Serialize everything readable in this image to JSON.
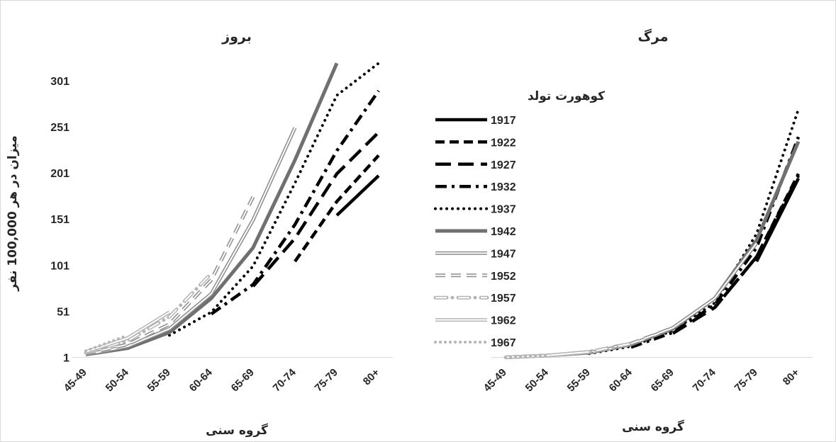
{
  "chart_data": [
    {
      "type": "line",
      "title": "بروز",
      "xlabel": "گروه سنی",
      "ylabel": "میزان در هر 100,000 نفر",
      "categories": [
        "45-49",
        "50-54",
        "55-59",
        "60-64",
        "65-69",
        "70-74",
        "75-79",
        "80+"
      ],
      "yticks": [
        1,
        51,
        101,
        151,
        201,
        251,
        301
      ],
      "ylim": [
        1,
        321
      ],
      "grid": false,
      "series": [
        {
          "name": "1917",
          "values": [
            null,
            null,
            null,
            null,
            null,
            null,
            155,
            198
          ]
        },
        {
          "name": "1922",
          "values": [
            null,
            null,
            null,
            null,
            null,
            105,
            170,
            220
          ]
        },
        {
          "name": "1927",
          "values": [
            null,
            null,
            null,
            null,
            78,
            130,
            200,
            245
          ]
        },
        {
          "name": "1932",
          "values": [
            null,
            null,
            null,
            48,
            80,
            145,
            225,
            290
          ]
        },
        {
          "name": "1937",
          "values": [
            null,
            null,
            25,
            50,
            100,
            190,
            285,
            320
          ]
        },
        {
          "name": "1942",
          "values": [
            4,
            11,
            28,
            65,
            120,
            215,
            320,
            null
          ]
        },
        {
          "name": "1947",
          "values": [
            4,
            13,
            32,
            70,
            150,
            250,
            null,
            null
          ]
        },
        {
          "name": "1952",
          "values": [
            5,
            15,
            37,
            85,
            175,
            null,
            null,
            null
          ]
        },
        {
          "name": "1957",
          "values": [
            6,
            19,
            45,
            92,
            null,
            null,
            null,
            null
          ]
        },
        {
          "name": "1962",
          "values": [
            7,
            22,
            50,
            null,
            null,
            null,
            null,
            null
          ]
        },
        {
          "name": "1967",
          "values": [
            8,
            25,
            null,
            null,
            null,
            null,
            null,
            null
          ]
        }
      ]
    },
    {
      "type": "line",
      "title": "مرگ",
      "xlabel": "گروه سنی",
      "ylabel": "",
      "categories": [
        "45-49",
        "50-54",
        "55-59",
        "60-64",
        "65-69",
        "70-74",
        "75-79",
        "80+"
      ],
      "ylim": [
        1,
        321
      ],
      "grid": false,
      "series": [
        {
          "name": "1917",
          "values": [
            null,
            null,
            null,
            null,
            null,
            null,
            105,
            195
          ]
        },
        {
          "name": "1922",
          "values": [
            null,
            null,
            null,
            null,
            null,
            55,
            110,
            200
          ]
        },
        {
          "name": "1927",
          "values": [
            null,
            null,
            null,
            null,
            27,
            55,
            110,
            198
          ]
        },
        {
          "name": "1932",
          "values": [
            null,
            null,
            null,
            12,
            28,
            58,
            120,
            240
          ]
        },
        {
          "name": "1937",
          "values": [
            null,
            null,
            5,
            13,
            30,
            60,
            135,
            270
          ]
        },
        {
          "name": "1942",
          "values": [
            1,
            3,
            6,
            15,
            32,
            65,
            128,
            235
          ]
        },
        {
          "name": "1947",
          "values": [
            1,
            3,
            6,
            15,
            33,
            65,
            125,
            null
          ]
        },
        {
          "name": "1952",
          "values": [
            1,
            3,
            7,
            16,
            33,
            null,
            null,
            null
          ]
        },
        {
          "name": "1957",
          "values": [
            1,
            3,
            7,
            16,
            null,
            null,
            null,
            null
          ]
        },
        {
          "name": "1962",
          "values": [
            1,
            3,
            7,
            null,
            null,
            null,
            null,
            null
          ]
        },
        {
          "name": "1967",
          "values": [
            1,
            3,
            null,
            null,
            null,
            null,
            null,
            null
          ]
        }
      ]
    }
  ],
  "legend": {
    "title": "کوهورت تولد",
    "placement": "center",
    "items": [
      {
        "name": "1917",
        "style": "solid-black"
      },
      {
        "name": "1922",
        "style": "dash-black"
      },
      {
        "name": "1927",
        "style": "longdash-black"
      },
      {
        "name": "1932",
        "style": "dashdot-black"
      },
      {
        "name": "1937",
        "style": "dot-black"
      },
      {
        "name": "1942",
        "style": "solid-dark-gray"
      },
      {
        "name": "1947",
        "style": "double-gray"
      },
      {
        "name": "1952",
        "style": "double-dash-gray"
      },
      {
        "name": "1957",
        "style": "double-dashdot-light-gray"
      },
      {
        "name": "1962",
        "style": "double-light-gray"
      },
      {
        "name": "1967",
        "style": "dot-light-gray"
      }
    ]
  },
  "colors": {
    "black": "#000000",
    "dark_gray": "#707070",
    "gray": "#8c8c8c",
    "light_gray": "#b4b4b4",
    "text": "#262626"
  }
}
